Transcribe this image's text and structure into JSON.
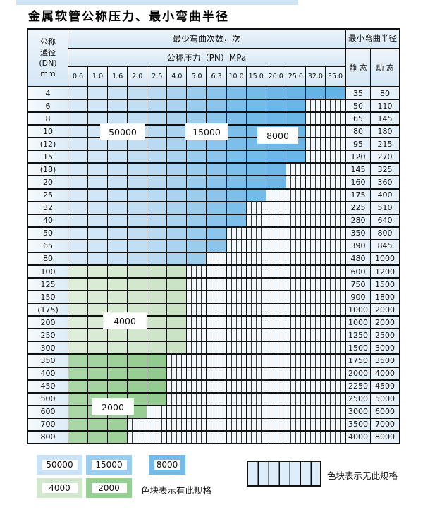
{
  "page": {
    "title": "金属软管公称压力、最小弯曲半径"
  },
  "table": {
    "header": {
      "dn_lines": [
        "公称",
        "通径",
        "(DN)",
        "mm"
      ],
      "bend_cycles_label": "最少弯曲次数，次",
      "pressure_label": "公称压力（PN）MPa",
      "pressure_columns": [
        "0.6",
        "1.0",
        "1.6",
        "2.0",
        "2.5",
        "4.0",
        "5.0",
        "6.3",
        "10.0",
        "15.0",
        "20.0",
        "25.0",
        "32.0",
        "35.0"
      ],
      "radius_label": "最小弯曲半径",
      "static_label": "静 态",
      "dynamic_label": "动 态"
    },
    "zone_labels": {
      "z50000": "50000",
      "z15000": "15000",
      "z8000": "8000",
      "z4000": "4000",
      "z2000": "2000"
    },
    "rows": [
      {
        "dn": "4",
        "colored": 14,
        "zone": "blue",
        "static": "35",
        "dynamic": "80"
      },
      {
        "dn": "6",
        "colored": 12,
        "zone": "blue",
        "static": "50",
        "dynamic": "110"
      },
      {
        "dn": "8",
        "colored": 12,
        "zone": "blue",
        "static": "65",
        "dynamic": "145"
      },
      {
        "dn": "10",
        "colored": 12,
        "zone": "blue",
        "static": "80",
        "dynamic": "180"
      },
      {
        "dn": "(12)",
        "colored": 12,
        "zone": "blue",
        "static": "95",
        "dynamic": "215"
      },
      {
        "dn": "15",
        "colored": 12,
        "zone": "blue",
        "static": "120",
        "dynamic": "270"
      },
      {
        "dn": "(18)",
        "colored": 11,
        "zone": "blue",
        "static": "145",
        "dynamic": "325"
      },
      {
        "dn": "20",
        "colored": 11,
        "zone": "blue",
        "static": "160",
        "dynamic": "360"
      },
      {
        "dn": "25",
        "colored": 10,
        "zone": "blue",
        "static": "175",
        "dynamic": "400"
      },
      {
        "dn": "32",
        "colored": 9,
        "zone": "blue",
        "static": "225",
        "dynamic": "510"
      },
      {
        "dn": "40",
        "colored": 9,
        "zone": "blue",
        "static": "280",
        "dynamic": "640"
      },
      {
        "dn": "50",
        "colored": 8,
        "zone": "blue",
        "static": "350",
        "dynamic": "800"
      },
      {
        "dn": "65",
        "colored": 8,
        "zone": "blue",
        "static": "390",
        "dynamic": "845"
      },
      {
        "dn": "80",
        "colored": 7,
        "zone": "blue",
        "static": "480",
        "dynamic": "1000"
      },
      {
        "dn": "100",
        "colored": 6,
        "zone": "green4000",
        "static": "600",
        "dynamic": "1200"
      },
      {
        "dn": "125",
        "colored": 6,
        "zone": "green4000",
        "static": "750",
        "dynamic": "1500"
      },
      {
        "dn": "150",
        "colored": 6,
        "zone": "green4000",
        "static": "900",
        "dynamic": "1800"
      },
      {
        "dn": "(175)",
        "colored": 6,
        "zone": "green4000",
        "static": "1000",
        "dynamic": "2000"
      },
      {
        "dn": "200",
        "colored": 6,
        "zone": "green4000",
        "static": "1000",
        "dynamic": "2000"
      },
      {
        "dn": "250",
        "colored": 6,
        "zone": "green4000",
        "static": "1250",
        "dynamic": "2500"
      },
      {
        "dn": "300",
        "colored": 6,
        "zone": "green4000",
        "static": "1500",
        "dynamic": "3000"
      },
      {
        "dn": "350",
        "colored": 5,
        "zone": "green2000",
        "static": "1750",
        "dynamic": "3500"
      },
      {
        "dn": "400",
        "colored": 5,
        "zone": "green2000",
        "static": "2000",
        "dynamic": "4000"
      },
      {
        "dn": "450",
        "colored": 5,
        "zone": "green2000",
        "static": "2250",
        "dynamic": "4500"
      },
      {
        "dn": "500",
        "colored": 5,
        "zone": "green2000",
        "static": "2500",
        "dynamic": "5000"
      },
      {
        "dn": "600",
        "colored": 4,
        "zone": "green2000",
        "static": "3000",
        "dynamic": "6000"
      },
      {
        "dn": "700",
        "colored": 3,
        "zone": "green2000",
        "static": "3500",
        "dynamic": "7000"
      },
      {
        "dn": "800",
        "colored": 3,
        "zone": "green2000",
        "static": "4000",
        "dynamic": "8000"
      }
    ]
  },
  "colors": {
    "blue_columns": [
      "#d8eaf8",
      "#d1e6f6",
      "#cae2f5",
      "#c2def3",
      "#badaf2",
      "#aad3f0",
      "#9accee",
      "#8bc5ec",
      "#7cbfea",
      "#73bbe9",
      "#6db8e8",
      "#69b6e7",
      "#66b4e7",
      "#64b3e6"
    ],
    "green_4000_columns": [
      "#deeed9",
      "#daebd5",
      "#d6e9d1",
      "#d2e7cd",
      "#cee5c9",
      "#cae3c5"
    ],
    "green_2000_columns": [
      "#a9d7a5",
      "#a3d49f",
      "#9dd199",
      "#97ce93",
      "#91cb8d"
    ],
    "hatch_bg": "#f3f8fc",
    "hatch_line": "#3a3a3a",
    "border": "#111111"
  },
  "legend": {
    "items": [
      {
        "value": "50000",
        "color": "#c9e2f5"
      },
      {
        "value": "15000",
        "color": "#9accee"
      },
      {
        "value": "8000",
        "color": "#73bbe9"
      },
      {
        "value": "4000",
        "color": "#d2e7cd"
      },
      {
        "value": "2000",
        "color": "#97ce93"
      }
    ],
    "has_spec_text": "色块表示有此规格",
    "no_spec_text": "色块表示无此规格"
  }
}
